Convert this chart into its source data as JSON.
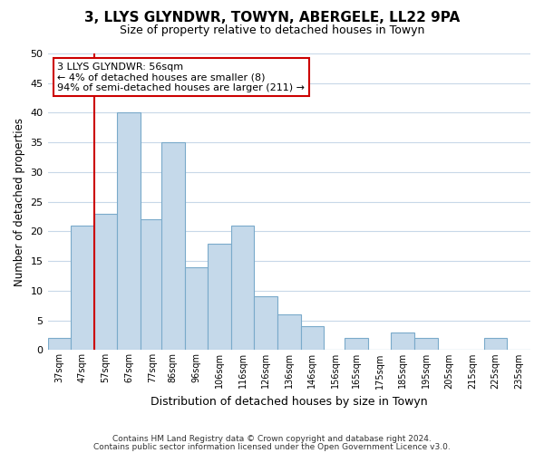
{
  "title": "3, LLYS GLYNDWR, TOWYN, ABERGELE, LL22 9PA",
  "subtitle": "Size of property relative to detached houses in Towyn",
  "xlabel": "Distribution of detached houses by size in Towyn",
  "ylabel": "Number of detached properties",
  "bar_labels": [
    "37sqm",
    "47sqm",
    "57sqm",
    "67sqm",
    "77sqm",
    "86sqm",
    "96sqm",
    "106sqm",
    "116sqm",
    "126sqm",
    "136sqm",
    "146sqm",
    "156sqm",
    "165sqm",
    "175sqm",
    "185sqm",
    "195sqm",
    "205sqm",
    "215sqm",
    "225sqm",
    "235sqm"
  ],
  "bar_lefts": [
    37,
    47,
    57,
    67,
    77,
    86,
    96,
    106,
    116,
    126,
    136,
    146,
    156,
    165,
    175,
    185,
    195,
    205,
    215,
    225,
    235
  ],
  "bar_widths": [
    10,
    10,
    10,
    10,
    10,
    10,
    10,
    10,
    10,
    10,
    10,
    10,
    10,
    10,
    10,
    10,
    10,
    10,
    10,
    10,
    10
  ],
  "bar_values": [
    2,
    21,
    23,
    40,
    22,
    35,
    14,
    18,
    21,
    9,
    6,
    4,
    0,
    2,
    0,
    3,
    2,
    0,
    0,
    2,
    0
  ],
  "bar_color": "#c5d9ea",
  "bar_edge_color": "#7aaaca",
  "highlight_x": 57,
  "highlight_line_color": "#cc0000",
  "annotation_text": "3 LLYS GLYNDWR: 56sqm\n← 4% of detached houses are smaller (8)\n94% of semi-detached houses are larger (211) →",
  "annotation_box_color": "#ffffff",
  "annotation_box_edge_color": "#cc0000",
  "xlim": [
    37,
    245
  ],
  "ylim": [
    0,
    50
  ],
  "yticks": [
    0,
    5,
    10,
    15,
    20,
    25,
    30,
    35,
    40,
    45,
    50
  ],
  "footer_line1": "Contains HM Land Registry data © Crown copyright and database right 2024.",
  "footer_line2": "Contains public sector information licensed under the Open Government Licence v3.0.",
  "bg_color": "#ffffff",
  "grid_color": "#c8d8e8"
}
